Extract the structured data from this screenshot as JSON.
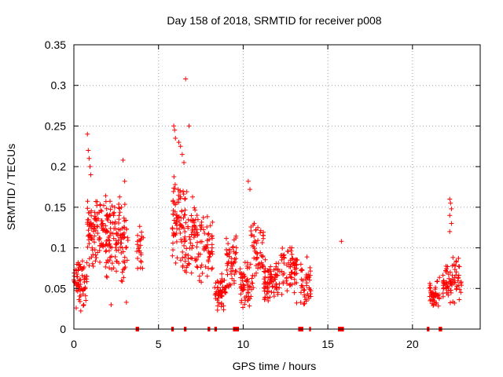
{
  "chart_data": {
    "type": "scatter",
    "title": "Day 158 of 2018, SRMTID for receiver p008",
    "xlabel": "GPS time / hours",
    "ylabel": "SRMTID / TECUs",
    "xlim": [
      0,
      24
    ],
    "ylim": [
      0,
      0.35
    ],
    "xticks": [
      0,
      5,
      10,
      15,
      20
    ],
    "xtick_labels": [
      "0",
      "5",
      "10",
      "15",
      "20"
    ],
    "yticks": [
      0,
      0.05,
      0.1,
      0.15,
      0.2,
      0.25,
      0.3,
      0.35
    ],
    "ytick_labels": [
      "0",
      "0.05",
      "0.1",
      "0.15",
      "0.2",
      "0.25",
      "0.3",
      "0.35"
    ],
    "grid": true,
    "marker": "+",
    "color": "#ff0000",
    "clusters": [
      {
        "x0": 0.0,
        "x1": 0.8,
        "ymin": 0.02,
        "ymax": 0.09,
        "n": 70
      },
      {
        "x0": 0.8,
        "x1": 1.6,
        "ymin": 0.07,
        "ymax": 0.16,
        "n": 80
      },
      {
        "x0": 1.6,
        "x1": 2.3,
        "ymin": 0.06,
        "ymax": 0.17,
        "n": 70
      },
      {
        "x0": 2.3,
        "x1": 3.2,
        "ymin": 0.05,
        "ymax": 0.17,
        "n": 80
      },
      {
        "x0": 3.7,
        "x1": 4.1,
        "ymin": 0.06,
        "ymax": 0.13,
        "n": 25
      },
      {
        "x0": 5.8,
        "x1": 6.5,
        "ymin": 0.07,
        "ymax": 0.2,
        "n": 70
      },
      {
        "x0": 6.5,
        "x1": 7.3,
        "ymin": 0.06,
        "ymax": 0.17,
        "n": 70
      },
      {
        "x0": 7.3,
        "x1": 8.2,
        "ymin": 0.05,
        "ymax": 0.15,
        "n": 60
      },
      {
        "x0": 8.3,
        "x1": 9.0,
        "ymin": 0.02,
        "ymax": 0.07,
        "n": 60
      },
      {
        "x0": 9.0,
        "x1": 9.6,
        "ymin": 0.04,
        "ymax": 0.12,
        "n": 50
      },
      {
        "x0": 9.8,
        "x1": 10.6,
        "ymin": 0.02,
        "ymax": 0.09,
        "n": 60
      },
      {
        "x0": 10.4,
        "x1": 11.2,
        "ymin": 0.05,
        "ymax": 0.14,
        "n": 50
      },
      {
        "x0": 11.2,
        "x1": 12.2,
        "ymin": 0.03,
        "ymax": 0.09,
        "n": 80
      },
      {
        "x0": 12.2,
        "x1": 13.2,
        "ymin": 0.03,
        "ymax": 0.11,
        "n": 70
      },
      {
        "x0": 13.4,
        "x1": 14.0,
        "ymin": 0.02,
        "ymax": 0.09,
        "n": 45
      },
      {
        "x0": 21.0,
        "x1": 21.6,
        "ymin": 0.02,
        "ymax": 0.065,
        "n": 45
      },
      {
        "x0": 21.8,
        "x1": 22.9,
        "ymin": 0.03,
        "ymax": 0.09,
        "n": 80
      }
    ],
    "highlights": [
      {
        "x": 0.8,
        "y": 0.24
      },
      {
        "x": 0.85,
        "y": 0.22
      },
      {
        "x": 0.9,
        "y": 0.21
      },
      {
        "x": 0.95,
        "y": 0.2
      },
      {
        "x": 1.0,
        "y": 0.19
      },
      {
        "x": 2.9,
        "y": 0.208
      },
      {
        "x": 3.0,
        "y": 0.182
      },
      {
        "x": 3.1,
        "y": 0.033
      },
      {
        "x": 2.2,
        "y": 0.03
      },
      {
        "x": 5.9,
        "y": 0.25
      },
      {
        "x": 5.95,
        "y": 0.245
      },
      {
        "x": 6.0,
        "y": 0.235
      },
      {
        "x": 6.2,
        "y": 0.23
      },
      {
        "x": 6.3,
        "y": 0.225
      },
      {
        "x": 6.4,
        "y": 0.215
      },
      {
        "x": 6.6,
        "y": 0.308
      },
      {
        "x": 6.8,
        "y": 0.25
      },
      {
        "x": 6.5,
        "y": 0.205
      },
      {
        "x": 10.3,
        "y": 0.182
      },
      {
        "x": 10.4,
        "y": 0.172
      },
      {
        "x": 15.8,
        "y": 0.108
      },
      {
        "x": 22.2,
        "y": 0.16
      },
      {
        "x": 22.25,
        "y": 0.155
      },
      {
        "x": 22.3,
        "y": 0.148
      },
      {
        "x": 22.2,
        "y": 0.14
      },
      {
        "x": 22.3,
        "y": 0.13
      },
      {
        "x": 22.2,
        "y": 0.12
      }
    ],
    "gap_marks": [
      {
        "x0": 3.65,
        "x1": 3.85
      },
      {
        "x0": 5.75,
        "x1": 5.9
      },
      {
        "x0": 6.5,
        "x1": 6.65
      },
      {
        "x0": 7.9,
        "x1": 8.05
      },
      {
        "x0": 8.3,
        "x1": 8.45
      },
      {
        "x0": 9.4,
        "x1": 9.75
      },
      {
        "x0": 13.25,
        "x1": 13.55
      },
      {
        "x0": 13.9,
        "x1": 14.0
      },
      {
        "x0": 15.6,
        "x1": 15.95
      },
      {
        "x0": 20.85,
        "x1": 21.0
      },
      {
        "x0": 21.55,
        "x1": 21.75
      }
    ]
  }
}
